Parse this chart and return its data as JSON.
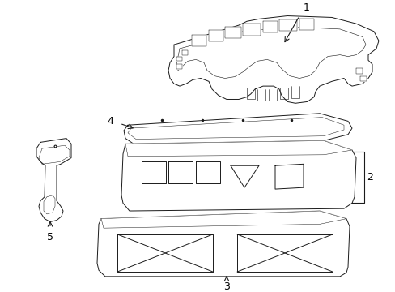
{
  "bg_color": "#ffffff",
  "line_color": "#1a1a1a",
  "label_color": "#000000",
  "lw": 0.7
}
